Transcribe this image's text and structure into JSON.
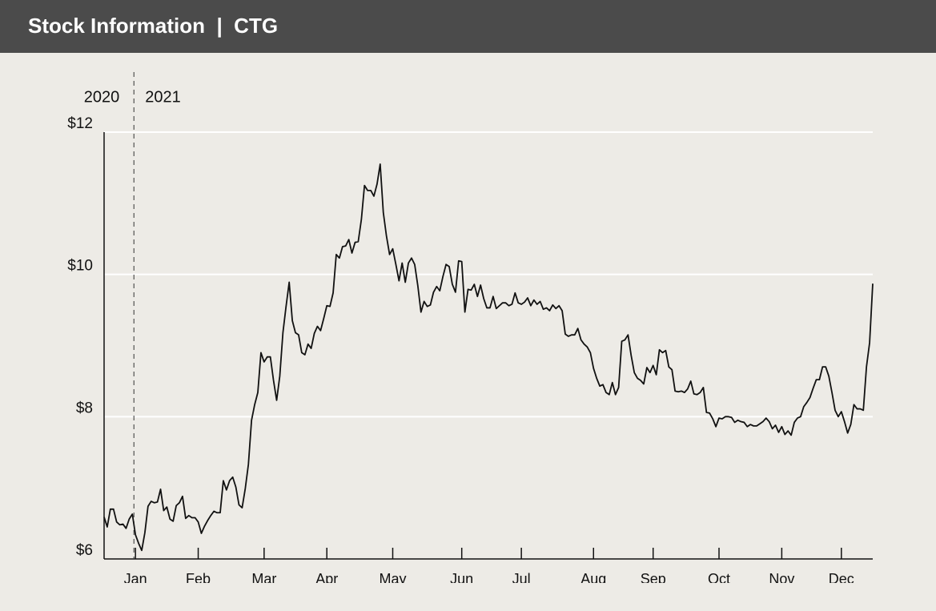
{
  "header": {
    "title": "Stock Information  |  CTG"
  },
  "chart_data": {
    "type": "line",
    "year_labels": [
      "2020",
      "2021"
    ],
    "categories": [
      null,
      null,
      null,
      null,
      null,
      null,
      null,
      null,
      null,
      null,
      "Jan",
      null,
      null,
      null,
      null,
      null,
      null,
      null,
      null,
      null,
      null,
      null,
      null,
      null,
      null,
      null,
      null,
      null,
      null,
      null,
      "Feb",
      null,
      null,
      null,
      null,
      null,
      null,
      null,
      null,
      null,
      null,
      null,
      null,
      null,
      null,
      null,
      null,
      null,
      null,
      null,
      null,
      "Mar",
      null,
      null,
      null,
      null,
      null,
      null,
      null,
      null,
      null,
      null,
      null,
      null,
      null,
      null,
      null,
      null,
      null,
      null,
      null,
      "Apr",
      null,
      null,
      null,
      null,
      null,
      null,
      null,
      null,
      null,
      null,
      null,
      null,
      null,
      null,
      null,
      null,
      null,
      null,
      null,
      null,
      "May",
      null,
      null,
      null,
      null,
      null,
      null,
      null,
      null,
      null,
      null,
      null,
      null,
      null,
      null,
      null,
      null,
      null,
      null,
      null,
      null,
      null,
      "Jun",
      null,
      null,
      null,
      null,
      null,
      null,
      null,
      null,
      null,
      null,
      null,
      null,
      null,
      null,
      null,
      null,
      null,
      null,
      "Jul",
      null,
      null,
      null,
      null,
      null,
      null,
      null,
      null,
      null,
      null,
      null,
      null,
      null,
      null,
      null,
      null,
      null,
      null,
      null,
      null,
      null,
      null,
      "Aug",
      null,
      null,
      null,
      null,
      null,
      null,
      null,
      null,
      null,
      null,
      null,
      null,
      null,
      null,
      null,
      null,
      null,
      null,
      "Sep",
      null,
      null,
      null,
      null,
      null,
      null,
      null,
      null,
      null,
      null,
      null,
      null,
      null,
      null,
      null,
      null,
      null,
      null,
      null,
      null,
      "Oct",
      null,
      null,
      null,
      null,
      null,
      null,
      null,
      null,
      null,
      null,
      null,
      null,
      null,
      null,
      null,
      null,
      null,
      null,
      null,
      "Nov",
      null,
      null,
      null,
      null,
      null,
      null,
      null,
      null,
      null,
      null,
      null,
      null,
      null,
      null,
      null,
      null,
      null,
      null,
      "Dec",
      null,
      null,
      null,
      null,
      null,
      null,
      null,
      null,
      null,
      null
    ],
    "values": [
      6.59,
      6.45,
      6.7,
      6.7,
      6.52,
      6.48,
      6.49,
      6.43,
      6.56,
      6.63,
      6.34,
      6.22,
      6.12,
      6.37,
      6.74,
      6.81,
      6.79,
      6.8,
      6.98,
      6.68,
      6.73,
      6.56,
      6.53,
      6.75,
      6.79,
      6.88,
      6.57,
      6.61,
      6.58,
      6.58,
      6.52,
      6.36,
      6.46,
      6.54,
      6.61,
      6.67,
      6.65,
      6.65,
      7.1,
      6.97,
      7.1,
      7.15,
      7.01,
      6.76,
      6.72,
      6.99,
      7.33,
      7.95,
      8.17,
      8.34,
      8.9,
      8.77,
      8.84,
      8.84,
      8.51,
      8.23,
      8.57,
      9.18,
      9.55,
      9.89,
      9.35,
      9.18,
      9.15,
      8.9,
      8.87,
      9.02,
      8.96,
      9.17,
      9.27,
      9.21,
      9.38,
      9.56,
      9.55,
      9.74,
      10.28,
      10.23,
      10.39,
      10.4,
      10.49,
      10.3,
      10.45,
      10.46,
      10.77,
      11.25,
      11.18,
      11.18,
      11.1,
      11.27,
      11.55,
      10.87,
      10.54,
      10.28,
      10.36,
      10.14,
      9.91,
      10.16,
      9.89,
      10.16,
      10.23,
      10.14,
      9.84,
      9.47,
      9.62,
      9.55,
      9.57,
      9.75,
      9.83,
      9.77,
      9.97,
      10.14,
      10.11,
      9.86,
      9.75,
      10.19,
      10.18,
      9.47,
      9.79,
      9.78,
      9.86,
      9.69,
      9.85,
      9.66,
      9.53,
      9.53,
      9.69,
      9.52,
      9.56,
      9.6,
      9.6,
      9.56,
      9.58,
      9.74,
      9.6,
      9.58,
      9.61,
      9.67,
      9.56,
      9.64,
      9.58,
      9.62,
      9.51,
      9.53,
      9.49,
      9.57,
      9.52,
      9.56,
      9.49,
      9.16,
      9.13,
      9.15,
      9.15,
      9.24,
      9.08,
      9.02,
      8.98,
      8.9,
      8.68,
      8.54,
      8.43,
      8.45,
      8.34,
      8.31,
      8.48,
      8.31,
      8.41,
      9.06,
      9.08,
      9.15,
      8.86,
      8.62,
      8.54,
      8.51,
      8.46,
      8.69,
      8.62,
      8.72,
      8.59,
      8.94,
      8.9,
      8.93,
      8.7,
      8.66,
      8.36,
      8.35,
      8.36,
      8.34,
      8.39,
      8.5,
      8.32,
      8.31,
      8.34,
      8.41,
      8.06,
      8.05,
      7.97,
      7.86,
      7.98,
      7.97,
      8.0,
      8.0,
      7.99,
      7.92,
      7.95,
      7.93,
      7.92,
      7.86,
      7.89,
      7.87,
      7.87,
      7.9,
      7.93,
      7.98,
      7.93,
      7.83,
      7.88,
      7.78,
      7.86,
      7.75,
      7.8,
      7.74,
      7.92,
      7.98,
      8.0,
      8.14,
      8.2,
      8.27,
      8.4,
      8.52,
      8.52,
      8.7,
      8.7,
      8.57,
      8.34,
      8.09,
      8.0,
      8.07,
      7.93,
      7.77,
      7.89,
      8.17,
      8.11,
      8.11,
      8.09,
      8.7,
      9.04,
      9.87
    ],
    "color": "#111111",
    "ylim": [
      6,
      12
    ],
    "yticks": [
      {
        "value": 6,
        "label": "$6"
      },
      {
        "value": 8,
        "label": "$8"
      },
      {
        "value": 10,
        "label": "$10"
      },
      {
        "value": 12,
        "label": "$12"
      }
    ],
    "grid": true
  }
}
